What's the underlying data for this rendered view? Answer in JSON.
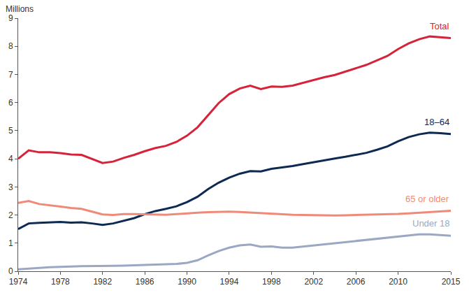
{
  "chart_data": {
    "type": "line",
    "y_label": "Millions",
    "x": [
      1974,
      1975,
      1976,
      1977,
      1978,
      1979,
      1980,
      1981,
      1982,
      1983,
      1984,
      1985,
      1986,
      1987,
      1988,
      1989,
      1990,
      1991,
      1992,
      1993,
      1994,
      1995,
      1996,
      1997,
      1998,
      1999,
      2000,
      2001,
      2002,
      2003,
      2004,
      2005,
      2006,
      2007,
      2008,
      2009,
      2010,
      2011,
      2012,
      2013,
      2014,
      2015
    ],
    "series": [
      {
        "name": "Total",
        "color": "#d6233a",
        "values": [
          4.0,
          4.3,
          4.23,
          4.23,
          4.2,
          4.15,
          4.14,
          4.0,
          3.85,
          3.9,
          4.03,
          4.14,
          4.27,
          4.38,
          4.46,
          4.6,
          4.82,
          5.12,
          5.55,
          5.98,
          6.3,
          6.5,
          6.6,
          6.48,
          6.57,
          6.56,
          6.6,
          6.7,
          6.8,
          6.9,
          6.98,
          7.1,
          7.22,
          7.34,
          7.5,
          7.66,
          7.9,
          8.1,
          8.25,
          8.35,
          8.32,
          8.29
        ]
      },
      {
        "name": "18–64",
        "color": "#0d2a52",
        "values": [
          1.5,
          1.7,
          1.72,
          1.74,
          1.75,
          1.73,
          1.74,
          1.7,
          1.65,
          1.7,
          1.79,
          1.89,
          2.03,
          2.14,
          2.22,
          2.31,
          2.46,
          2.65,
          2.92,
          3.15,
          3.33,
          3.47,
          3.56,
          3.55,
          3.64,
          3.69,
          3.74,
          3.81,
          3.88,
          3.95,
          4.01,
          4.07,
          4.14,
          4.21,
          4.32,
          4.44,
          4.62,
          4.77,
          4.87,
          4.93,
          4.91,
          4.88
        ]
      },
      {
        "name": "65 or older",
        "color": "#f08a78",
        "values": [
          2.43,
          2.5,
          2.39,
          2.35,
          2.3,
          2.25,
          2.22,
          2.12,
          2.02,
          2.0,
          2.03,
          2.03,
          2.02,
          2.02,
          2.01,
          2.03,
          2.06,
          2.08,
          2.1,
          2.11,
          2.12,
          2.11,
          2.09,
          2.06,
          2.04,
          2.02,
          2.01,
          2.0,
          1.99,
          1.99,
          1.98,
          1.99,
          2.0,
          2.01,
          2.02,
          2.02,
          2.04,
          2.06,
          2.08,
          2.11,
          2.13,
          2.15
        ]
      },
      {
        "name": "Under 18",
        "color": "#9aa8c4",
        "values": [
          0.07,
          0.1,
          0.12,
          0.14,
          0.16,
          0.17,
          0.18,
          0.18,
          0.18,
          0.19,
          0.2,
          0.21,
          0.23,
          0.24,
          0.24,
          0.26,
          0.3,
          0.39,
          0.56,
          0.72,
          0.84,
          0.92,
          0.95,
          0.87,
          0.88,
          0.84,
          0.84,
          0.88,
          0.92,
          0.96,
          0.99,
          1.04,
          1.08,
          1.12,
          1.16,
          1.2,
          1.24,
          1.28,
          1.31,
          1.31,
          1.29,
          1.26
        ]
      }
    ],
    "xlim": [
      1974,
      2015
    ],
    "xticks": [
      1974,
      1978,
      1982,
      1986,
      1990,
      1994,
      1998,
      2002,
      2006,
      2010,
      2015
    ],
    "ylim": [
      0,
      9
    ],
    "yticks": [
      0,
      1,
      2,
      3,
      4,
      5,
      6,
      7,
      8,
      9
    ],
    "grid": false
  }
}
